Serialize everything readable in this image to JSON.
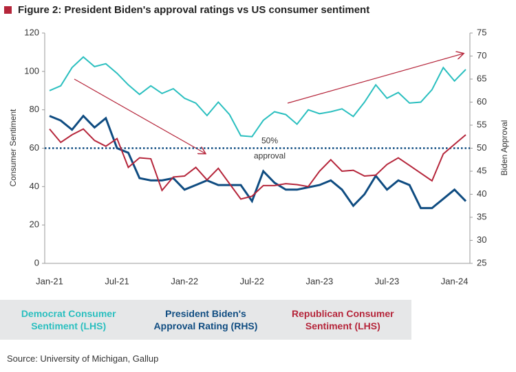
{
  "chart_data": {
    "type": "line",
    "title": "Figure 2: President Biden's approval ratings vs US consumer sentiment",
    "y_label": "Consumer Sentiment",
    "y2_label": "Biden Approval",
    "source": "Source: University of Michigan, Gallup",
    "categories": [
      "Jan-21",
      null,
      null,
      null,
      null,
      null,
      "Jul-21",
      null,
      null,
      null,
      null,
      null,
      "Jan-22",
      null,
      null,
      null,
      null,
      null,
      "Jul-22",
      null,
      null,
      null,
      null,
      null,
      "Jan-23",
      null,
      null,
      null,
      null,
      null,
      "Jul-23",
      null,
      null,
      null,
      null,
      null,
      "Jan-24",
      null
    ],
    "ylim": [
      0,
      120
    ],
    "yticks": [
      0,
      20,
      40,
      60,
      80,
      100,
      120
    ],
    "y2lim": [
      25,
      75
    ],
    "y2ticks": [
      25,
      30,
      35,
      40,
      45,
      50,
      55,
      60,
      65,
      70,
      75
    ],
    "reference_line": {
      "value": 50,
      "axis": "y2",
      "color": "#0F4C81",
      "label": [
        "50%",
        "approval"
      ]
    },
    "series": [
      {
        "name": "Democrat Consumer Sentiment (LHS)",
        "color": "#2ABFBF",
        "values": [
          90,
          92.5,
          102,
          107.5,
          102.5,
          104,
          99,
          93,
          88,
          92.5,
          88.5,
          91,
          86,
          83.5,
          77,
          84,
          77.5,
          66.5,
          66,
          74.5,
          79,
          77.5,
          72.5,
          80,
          78,
          79,
          80.5,
          76.5,
          84,
          93,
          86,
          89,
          83.5,
          84,
          90.5,
          102,
          95,
          101
        ]
      },
      {
        "name": "President Biden's Approval Rating (RHS)",
        "color": "#0F4C81",
        "axis": "y2",
        "values": [
          57,
          56,
          54,
          57,
          54.5,
          56.5,
          50,
          49,
          43.5,
          43,
          43,
          43.5,
          41,
          42,
          43,
          42,
          42,
          42,
          38.5,
          45,
          42.5,
          41,
          41,
          41.5,
          42,
          43,
          41,
          37.5,
          40,
          44,
          41,
          43,
          42,
          37,
          37,
          39,
          41,
          38.5
        ]
      },
      {
        "name": "Republican Consumer Sentiment (LHS)",
        "color": "#B5253A",
        "values": [
          70,
          63,
          67,
          70,
          64,
          61,
          65,
          50,
          55,
          54.5,
          38,
          45,
          45.5,
          50,
          43.5,
          49.5,
          41.5,
          33.5,
          35,
          40.5,
          40.5,
          41.5,
          41,
          40,
          48,
          54,
          48,
          48.5,
          45.5,
          46,
          51.5,
          55,
          51,
          47,
          43,
          57,
          62,
          67
        ]
      }
    ]
  }
}
